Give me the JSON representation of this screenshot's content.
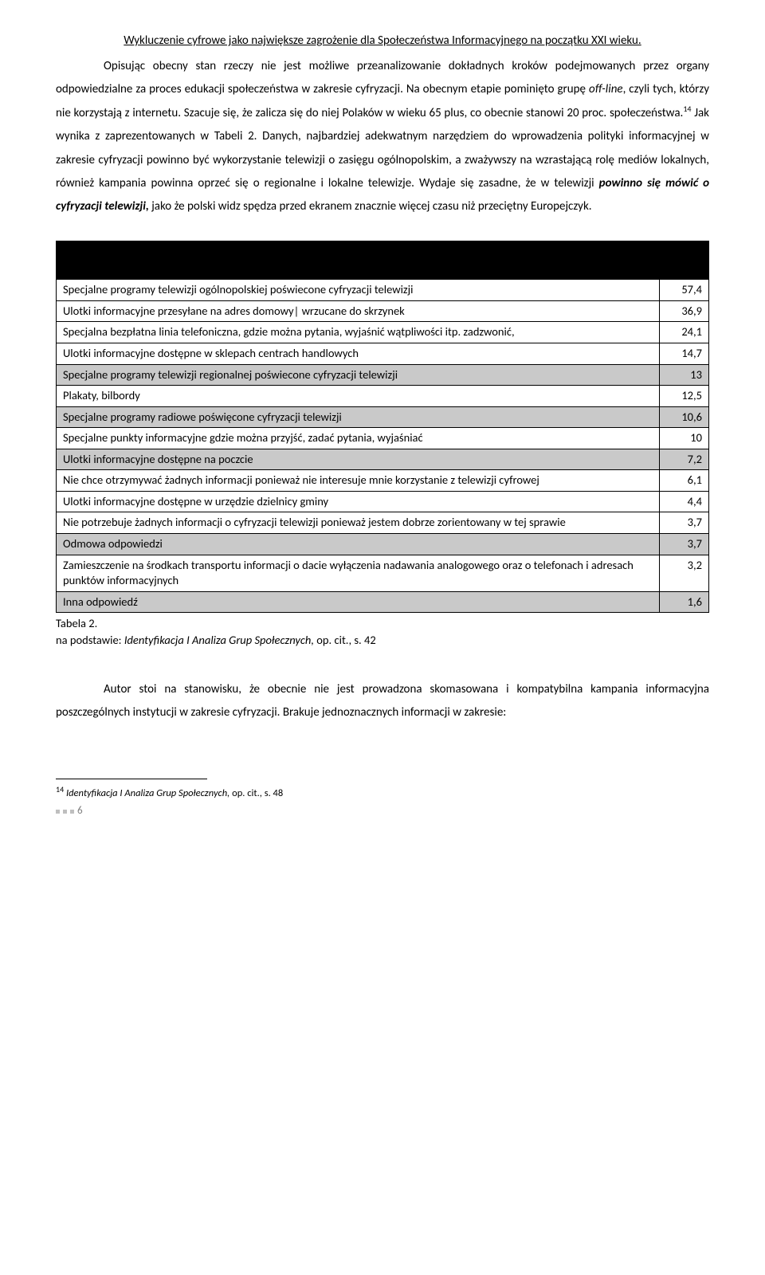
{
  "header": {
    "title": "Wykluczenie cyfrowe jako największe zagrożenie dla Społeczeństwa Informacyjnego na początku XXI wieku."
  },
  "body": {
    "p1a": "Opisując obecny stan rzeczy nie jest możliwe przeanalizowanie dokładnych kroków podejmowanych przez organy odpowiedzialne za proces edukacji społeczeństwa w zakresie cyfryzacji. Na obecnym etapie pominięto grupę ",
    "p1_off": "off-line",
    "p1b": ", czyli tych, którzy nie korzystają z internetu. Szacuje się, że zalicza się do niej Polaków w wieku 65 plus, co obecnie stanowi 20 proc. społeczeństwa.",
    "p1_fn": "14",
    "p1c": " Jak wynika z zaprezentowanych w Tabeli 2. Danych, najbardziej adekwatnym narzędziem do wprowadzenia polityki informacyjnej w zakresie cyfryzacji powinno być wykorzystanie telewizji o zasięgu ogólnopolskim, a zważywszy na wzrastającą rolę mediów lokalnych, również kampania powinna oprzeć się o regionalne i lokalne telewizje. Wydaje się zasadne, że w telewizji ",
    "p1_bi": "powinno się mówić o cyfryzacji telewizji,",
    "p1d": " jako że polski widz spędza przed ekranem znacznie więcej czasu niż przeciętny Europejczyk.",
    "p2": "Autor stoi na stanowisku, że obecnie nie jest prowadzona skomasowana i kompatybilna kampania informacyjna poszczególnych instytucji w zakresie cyfryzacji. Brakuje jednoznacznych informacji w zakresie:"
  },
  "table": {
    "rows": [
      {
        "label": "Specjalne programy telewizji ogólnopolskiej poświecone cyfryzacji telewizji",
        "value": "57,4",
        "shade": false
      },
      {
        "label": "Ulotki informacyjne przesyłane na adres domowy| wrzucane do skrzynek",
        "value": "36,9",
        "shade": false
      },
      {
        "label": "Specjalna bezpłatna linia telefoniczna, gdzie można pytania, wyjaśnić wątpliwości itp. zadzwonić,",
        "value": "24,1",
        "shade": false
      },
      {
        "label": "Ulotki informacyjne dostępne w sklepach centrach handlowych",
        "value": "14,7",
        "shade": false
      },
      {
        "label": "Specjalne programy telewizji regionalnej poświecone cyfryzacji telewizji",
        "value": "13",
        "shade": true
      },
      {
        "label": "Plakaty, bilbordy",
        "value": "12,5",
        "shade": false
      },
      {
        "label": "Specjalne programy radiowe poświęcone cyfryzacji telewizji",
        "value": "10,6",
        "shade": true
      },
      {
        "label": "Specjalne punkty informacyjne gdzie można przyjść, zadać pytania, wyjaśniać",
        "value": "10",
        "shade": false
      },
      {
        "label": "Ulotki informacyjne dostępne na poczcie",
        "value": "7,2",
        "shade": true
      },
      {
        "label": "Nie chce otrzymywać żadnych informacji ponieważ nie interesuje mnie korzystanie z telewizji cyfrowej",
        "value": "6,1",
        "shade": false
      },
      {
        "label": "Ulotki informacyjne dostępne w urzędzie dzielnicy gminy",
        "value": "4,4",
        "shade": false
      },
      {
        "label": "Nie potrzebuje żadnych informacji o cyfryzacji telewizji ponieważ jestem dobrze zorientowany w tej sprawie",
        "value": "3,7",
        "shade": false
      },
      {
        "label": "Odmowa odpowiedzi",
        "value": "3,7",
        "shade": true
      },
      {
        "label": "Zamieszczenie na środkach transportu informacji o dacie wyłączenia nadawania analogowego oraz o telefonach i adresach punktów informacyjnych",
        "value": "3,2",
        "shade": false
      },
      {
        "label": "Inna odpowiedź",
        "value": "1,6",
        "shade": true
      }
    ],
    "caption_a": "Tabela 2.",
    "caption_b": "na podstawie: ",
    "caption_i": "Identyfikacja I Analiza Grup Społecznych, ",
    "caption_c": "op. cit., s. 42"
  },
  "footnote": {
    "num": "14",
    "text_i": " Identyfikacja I Analiza Grup Społecznych, ",
    "text_r": "op. cit., s. 48"
  },
  "page": {
    "num": "6"
  }
}
